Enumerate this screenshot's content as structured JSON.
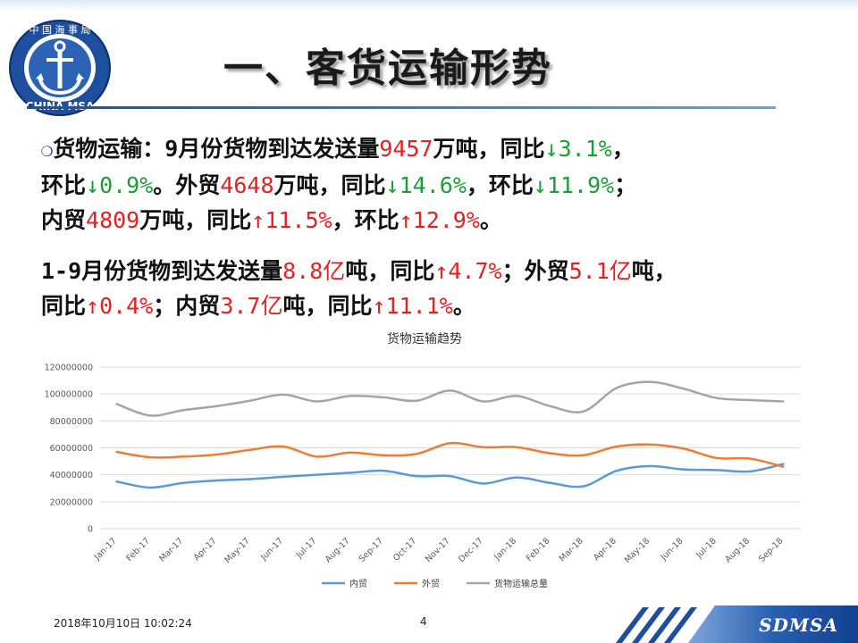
{
  "slide": {
    "title": "一、客货运输形势",
    "logo": {
      "top_text": "中 国 海 事 局",
      "bottom_text": "CHINA MSA"
    },
    "paragraph1": {
      "bullet": "❍",
      "lead": "货物运输",
      "t1": "：9月份货物到达发送量",
      "v1": "9457",
      "t2": "万吨，同比",
      "a1": "↓",
      "p1": "3.1%",
      "t3": "，",
      "t4": "环比",
      "a2": "↓",
      "p2": "0.9%",
      "t5": "。外贸",
      "v2": "4648",
      "t6": "万吨，同比",
      "a3": "↓",
      "p3": "14.6%",
      "t7": "，环比",
      "a4": "↓",
      "p4": "11.9%",
      "t8": "；",
      "t9": "内贸",
      "v3": "4809",
      "t10": "万吨，同比",
      "a5": "↑",
      "p5": "11.5%",
      "t11": "，环比",
      "a6": "↑",
      "p6": "12.9%",
      "t12": "。"
    },
    "paragraph2": {
      "t1": "1-9月份货物到达发送量",
      "v1": "8.8亿",
      "t2": "吨，同比",
      "a1": "↑",
      "p1": "4.7%",
      "t3": "；外贸",
      "v2": "5.1亿",
      "t4": "吨，",
      "t5": "同比",
      "a2": "↑",
      "p2": "0.4%",
      "t6": "；内贸",
      "v3": "3.7亿",
      "t7": "吨，同比",
      "a3": "↑",
      "p3": "11.1%",
      "t8": "。"
    },
    "footer": {
      "date": "2018年10月10日  10:02:24",
      "page": "4",
      "brand": "SDMSA"
    }
  },
  "chart_data": {
    "type": "line",
    "title": "货物运输趋势",
    "categories": [
      "Jan-17",
      "Feb-17",
      "Mar-17",
      "Apr-17",
      "May-17",
      "Jun-17",
      "Jul-17",
      "Aug-17",
      "Sep-17",
      "Oct-17",
      "Nov-17",
      "Dec-17",
      "Jan-18",
      "Feb-18",
      "Mar-18",
      "Apr-18",
      "May-18",
      "Jun-18",
      "Jul-18",
      "Aug-18",
      "Sep-18"
    ],
    "series": [
      {
        "name": "内贸",
        "color": "#5b9bd5",
        "values": [
          35000000,
          30500000,
          34000000,
          35800000,
          36800000,
          38500000,
          40000000,
          41500000,
          43000000,
          39000000,
          39000000,
          33500000,
          38000000,
          34000000,
          31500000,
          43000000,
          46500000,
          44000000,
          43500000,
          42500000,
          48000000
        ]
      },
      {
        "name": "外贸",
        "color": "#ed7d31",
        "values": [
          57000000,
          53000000,
          53500000,
          55000000,
          58500000,
          61000000,
          53500000,
          56500000,
          54500000,
          55500000,
          63500000,
          60500000,
          60500000,
          56000000,
          54500000,
          61000000,
          62500000,
          59500000,
          52500000,
          52000000,
          46000000
        ]
      },
      {
        "name": "货物运输总量",
        "color": "#a5a5a5",
        "values": [
          92500000,
          84000000,
          88000000,
          91000000,
          95000000,
          99500000,
          94500000,
          98500000,
          97500000,
          95000000,
          102500000,
          94500000,
          98500000,
          91000000,
          87000000,
          104500000,
          109000000,
          104000000,
          97000000,
          95500000,
          94500000
        ]
      }
    ],
    "ylim": [
      0,
      120000000
    ],
    "yticks": [
      "0",
      "20000000",
      "40000000",
      "60000000",
      "80000000",
      "100000000",
      "120000000"
    ],
    "grid": true,
    "legend": "bottom"
  }
}
